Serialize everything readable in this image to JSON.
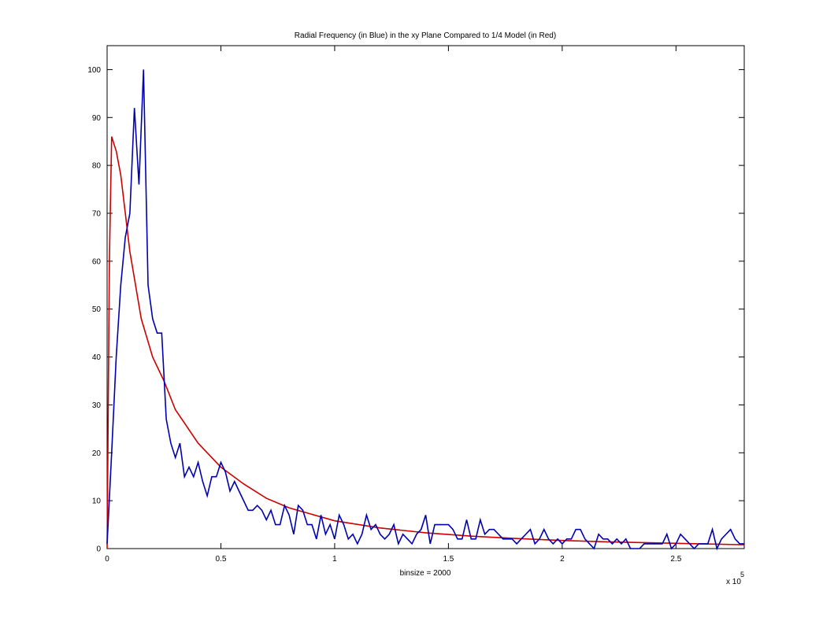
{
  "chart_data": {
    "type": "line",
    "title": "Radial Frequency (in Blue) in the xy Plane Compared to 1/4 Model (in Red)",
    "x_label": "binsize = 2000",
    "x_scale_label": "x 10",
    "x_scale_exponent": "5",
    "xlim": [
      0,
      2.8
    ],
    "xticks": [
      0,
      0.5,
      1,
      1.5,
      2,
      2.5
    ],
    "ylim": [
      0,
      105
    ],
    "yticks": [
      0,
      10,
      20,
      30,
      40,
      50,
      60,
      70,
      80,
      90,
      100
    ],
    "grid": false,
    "series": [
      {
        "color": "#0000b0",
        "x": [
          0,
          0.02,
          0.04,
          0.06,
          0.08,
          0.1,
          0.12,
          0.14,
          0.16,
          0.18,
          0.2,
          0.22,
          0.24,
          0.26,
          0.28,
          0.3,
          0.32,
          0.34,
          0.36,
          0.38,
          0.4,
          0.42,
          0.44,
          0.46,
          0.48,
          0.5,
          0.52,
          0.54,
          0.56,
          0.58,
          0.6,
          0.62,
          0.64,
          0.66,
          0.68,
          0.7,
          0.72,
          0.74,
          0.76,
          0.78,
          0.8,
          0.82,
          0.84,
          0.86,
          0.88,
          0.9,
          0.92,
          0.94,
          0.96,
          0.98,
          1,
          1.02,
          1.04,
          1.06,
          1.08,
          1.1,
          1.12,
          1.14,
          1.16,
          1.18,
          1.2,
          1.22,
          1.24,
          1.26,
          1.28,
          1.3,
          1.32,
          1.34,
          1.36,
          1.38,
          1.4,
          1.42,
          1.44,
          1.46,
          1.48,
          1.5,
          1.52,
          1.54,
          1.56,
          1.58,
          1.6,
          1.62,
          1.64,
          1.66,
          1.68,
          1.7,
          1.72,
          1.74,
          1.76,
          1.78,
          1.8,
          1.82,
          1.84,
          1.86,
          1.88,
          1.9,
          1.92,
          1.94,
          1.96,
          1.98,
          2,
          2.02,
          2.04,
          2.06,
          2.08,
          2.1,
          2.12,
          2.14,
          2.16,
          2.18,
          2.2,
          2.22,
          2.24,
          2.26,
          2.28,
          2.3,
          2.32,
          2.34,
          2.36,
          2.38,
          2.4,
          2.42,
          2.44,
          2.46,
          2.48,
          2.5,
          2.52,
          2.54,
          2.56,
          2.58,
          2.6,
          2.62,
          2.64,
          2.66,
          2.68,
          2.7,
          2.72,
          2.74,
          2.76,
          2.78,
          2.8
        ],
        "values": [
          1,
          20,
          40,
          55,
          65,
          70,
          92,
          76,
          100,
          55,
          48,
          45,
          45,
          27,
          22,
          19,
          22,
          15,
          17,
          15,
          18,
          14,
          11,
          15,
          15,
          18,
          16,
          12,
          14,
          12,
          10,
          8,
          8,
          9,
          8,
          6,
          8,
          5,
          5,
          9,
          7,
          3,
          9,
          8,
          5,
          5,
          2,
          7,
          3,
          5,
          2,
          7,
          5,
          2,
          3,
          1,
          3,
          7,
          4,
          5,
          3,
          2,
          3,
          5,
          1,
          3,
          2,
          1,
          3,
          4,
          7,
          1,
          5,
          5,
          5,
          5,
          4,
          2,
          2,
          6,
          2,
          2,
          6,
          3,
          4,
          4,
          3,
          2,
          2,
          2,
          1,
          2,
          3,
          4,
          1,
          2,
          4,
          2,
          1,
          2,
          1,
          2,
          2,
          4,
          4,
          2,
          1,
          0,
          3,
          2,
          2,
          1,
          2,
          1,
          2,
          0,
          0,
          0,
          1,
          1,
          1,
          1,
          1,
          3,
          0,
          1,
          3,
          2,
          1,
          0,
          1,
          1,
          1,
          4,
          0,
          2,
          3,
          4,
          2,
          1,
          1
        ]
      },
      {
        "color": "#cc0000",
        "x": [
          0,
          0.01,
          0.02,
          0.04,
          0.06,
          0.08,
          0.1,
          0.15,
          0.2,
          0.25,
          0.3,
          0.4,
          0.5,
          0.6,
          0.7,
          0.8,
          1,
          1.2,
          1.4,
          1.6,
          1.8,
          2,
          2.2,
          2.4,
          2.6,
          2.8
        ],
        "values": [
          0,
          60,
          86,
          83,
          78,
          70,
          62,
          48,
          40,
          35,
          29,
          22,
          17,
          13.5,
          10.5,
          8.5,
          5.8,
          4.3,
          3.3,
          2.6,
          2.1,
          1.7,
          1.4,
          1.2,
          1,
          0.8
        ]
      }
    ]
  }
}
